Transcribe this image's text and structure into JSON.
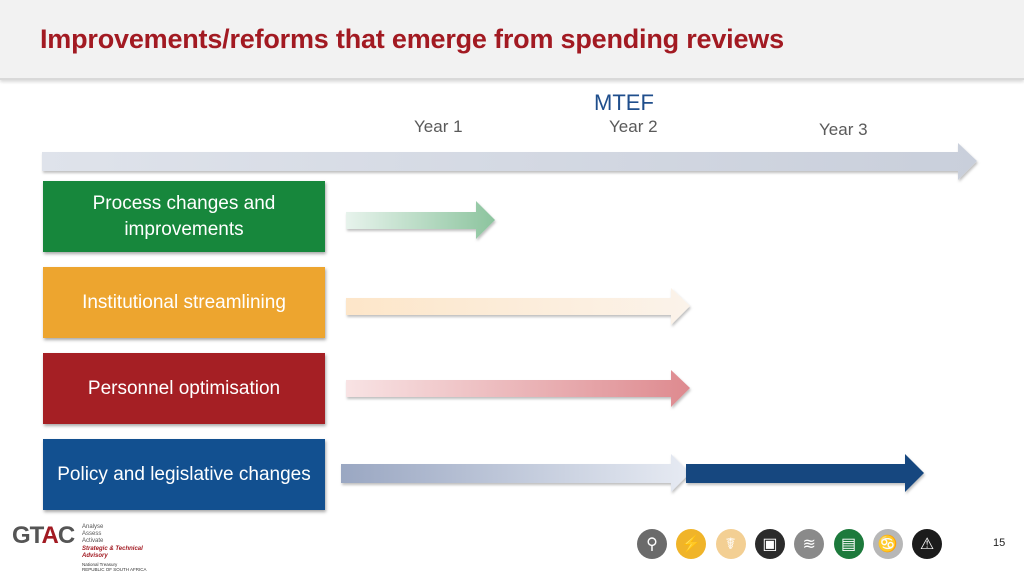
{
  "slide": {
    "title": "Improvements/reforms that emerge from spending reviews",
    "timeline": {
      "label": "MTEF",
      "years": [
        "Year 1",
        "Year 2",
        "Year 3"
      ]
    },
    "reforms": [
      {
        "label": "Process changes and improvements",
        "color": "#17873c"
      },
      {
        "label": "Institutional streamlining",
        "color": "#eda52f"
      },
      {
        "label": "Personnel optimisation",
        "color": "#a51f24"
      },
      {
        "label": "Policy and legislative changes",
        "color": "#125090"
      }
    ],
    "page_number": "15"
  },
  "logo": {
    "name_g": "GT",
    "name_a": "A",
    "name_c": "C",
    "taglines": [
      "Analyse",
      "Assess",
      "Activate"
    ],
    "subtitle": "Strategic & Technical Advisory",
    "footer_line1": "National Treasury",
    "footer_line2": "REPUBLIC OF SOUTH AFRICA"
  },
  "footer_icons": [
    {
      "name": "water-tap-icon",
      "glyph": "⚲",
      "color": "#6b6b6b"
    },
    {
      "name": "electricity-icon",
      "glyph": "⚡",
      "color": "#f0b429"
    },
    {
      "name": "health-icon",
      "glyph": "☤",
      "color": "#f3cf93"
    },
    {
      "name": "bus-icon",
      "glyph": "▣",
      "color": "#2b2b2b"
    },
    {
      "name": "road-icon",
      "glyph": "≋",
      "color": "#8a8a8a"
    },
    {
      "name": "education-icon",
      "glyph": "▤",
      "color": "#1d7a3c"
    },
    {
      "name": "ribbon-icon",
      "glyph": "♋",
      "color": "#b7b7b7"
    },
    {
      "name": "warning-icon",
      "glyph": "⚠",
      "color": "#1b1b1b"
    }
  ]
}
